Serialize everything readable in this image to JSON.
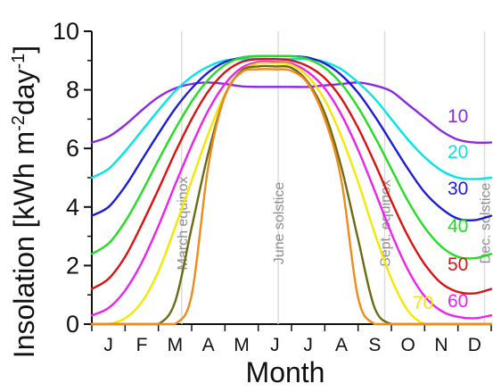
{
  "chart_data": {
    "type": "line",
    "title": "",
    "xlabel": "Month",
    "ylabel": "Insolation [kWh m-2day-1]",
    "ylabel_parts": {
      "main": "Insolation [kWh m",
      "sup1": "-2",
      "mid": "day",
      "sup2": "-1",
      "end": "]"
    },
    "xlim": [
      0,
      12
    ],
    "ylim": [
      0,
      10
    ],
    "yticks": [
      "0",
      "2",
      "4",
      "6",
      "8",
      "10"
    ],
    "month_labels": [
      "J",
      "F",
      "M",
      "A",
      "M",
      "J",
      "J",
      "A",
      "S",
      "O",
      "N",
      "D"
    ],
    "grid": false,
    "legend": "series labels at right end of curves",
    "events": [
      {
        "label": "March equinox",
        "x": 2.7
      },
      {
        "label": "June solstice",
        "x": 5.6
      },
      {
        "label": "Sept. equinox",
        "x": 8.8
      },
      {
        "label": "Dec. solstice",
        "x": 11.8
      }
    ],
    "x": [
      0,
      0.5,
      1,
      1.5,
      2,
      2.5,
      3,
      3.5,
      4,
      4.5,
      5,
      5.5,
      6,
      6.5,
      7,
      7.5,
      8,
      8.5,
      9,
      9.5,
      10,
      10.5,
      11,
      11.5,
      12
    ],
    "series": [
      {
        "name": "10",
        "color": "#8a2be2",
        "values": [
          6.2,
          6.4,
          6.8,
          7.3,
          7.75,
          8.05,
          8.2,
          8.25,
          8.2,
          8.12,
          8.1,
          8.1,
          8.1,
          8.1,
          8.15,
          8.2,
          8.25,
          8.15,
          7.95,
          7.5,
          7.05,
          6.6,
          6.3,
          6.2,
          6.2
        ]
      },
      {
        "name": "20",
        "color": "#00e5e5",
        "values": [
          5.0,
          5.3,
          5.9,
          6.6,
          7.3,
          7.95,
          8.45,
          8.8,
          9.0,
          9.05,
          9.05,
          9.05,
          9.05,
          9.05,
          8.95,
          8.7,
          8.25,
          7.7,
          7.0,
          6.3,
          5.7,
          5.25,
          5.0,
          4.95,
          5.0
        ]
      },
      {
        "name": "30",
        "color": "#1c1cd8",
        "values": [
          3.7,
          4.0,
          4.7,
          5.6,
          6.5,
          7.35,
          8.05,
          8.6,
          8.95,
          9.1,
          9.15,
          9.15,
          9.15,
          9.1,
          8.9,
          8.5,
          7.9,
          7.1,
          6.2,
          5.3,
          4.5,
          3.95,
          3.6,
          3.55,
          3.7
        ]
      },
      {
        "name": "40",
        "color": "#22dd22",
        "values": [
          2.4,
          2.75,
          3.5,
          4.5,
          5.6,
          6.65,
          7.6,
          8.35,
          8.85,
          9.1,
          9.15,
          9.15,
          9.15,
          9.05,
          8.75,
          8.2,
          7.4,
          6.4,
          5.3,
          4.2,
          3.3,
          2.65,
          2.3,
          2.25,
          2.4
        ]
      },
      {
        "name": "50",
        "color": "#dd1111",
        "values": [
          1.2,
          1.55,
          2.3,
          3.4,
          4.6,
          5.85,
          7.0,
          7.95,
          8.6,
          8.95,
          9.05,
          9.05,
          9.0,
          8.8,
          8.4,
          7.7,
          6.7,
          5.5,
          4.2,
          3.0,
          2.05,
          1.4,
          1.1,
          1.05,
          1.2
        ]
      },
      {
        "name": "60",
        "color": "#ee22ee",
        "values": [
          0.3,
          0.55,
          1.15,
          2.1,
          3.35,
          4.75,
          6.1,
          7.3,
          8.2,
          8.75,
          8.95,
          8.95,
          8.9,
          8.6,
          8.05,
          7.15,
          5.95,
          4.55,
          3.1,
          1.85,
          0.95,
          0.45,
          0.25,
          0.2,
          0.3
        ]
      },
      {
        "name": "70",
        "color": "#f5e800",
        "values": [
          0,
          0,
          0.2,
          0.75,
          1.8,
          3.3,
          4.9,
          6.5,
          7.85,
          8.65,
          8.9,
          8.9,
          8.85,
          8.45,
          7.65,
          6.4,
          4.85,
          3.1,
          1.55,
          0.45,
          0,
          0,
          0,
          0,
          0
        ]
      },
      {
        "name": "",
        "color": "#6b6b14",
        "values": [
          0,
          0,
          0,
          0,
          0,
          0.75,
          3.3,
          5.85,
          7.8,
          8.65,
          8.8,
          8.8,
          8.75,
          8.25,
          7.2,
          5.35,
          2.9,
          0.55,
          0,
          0,
          0,
          0,
          0,
          0,
          0
        ]
      },
      {
        "name": "",
        "color": "#f08a1c",
        "values": [
          0,
          0,
          0,
          0,
          0,
          0,
          1.0,
          5.4,
          7.8,
          8.6,
          8.7,
          8.7,
          8.65,
          8.2,
          7.0,
          4.9,
          0.9,
          0,
          0,
          0,
          0,
          0,
          0,
          0,
          0
        ]
      }
    ],
    "series_label_colors": [
      "#8a2be2",
      "#00e5e5",
      "#1c1cd8",
      "#22dd22",
      "#dd1111",
      "#ee22ee",
      "#f5e800"
    ]
  }
}
